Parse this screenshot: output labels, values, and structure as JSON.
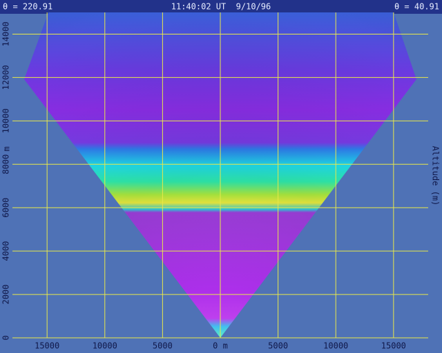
{
  "chart_data": {
    "type": "scan",
    "title_left": "θ = 220.91",
    "title": "11:40:02 UT  9/10/96",
    "title_right": "θ = 40.91",
    "ylabel": "m",
    "y2label": "Altitude (m)",
    "xlim": [
      -18000,
      18000
    ],
    "ylim": [
      0,
      15000
    ],
    "xticks": [
      {
        "value": -15000,
        "label": "15000"
      },
      {
        "value": -10000,
        "label": "10000"
      },
      {
        "value": -5000,
        "label": "5000"
      },
      {
        "value": 0,
        "label": "0 m"
      },
      {
        "value": 5000,
        "label": "5000"
      },
      {
        "value": 10000,
        "label": "10000"
      },
      {
        "value": 15000,
        "label": "15000"
      }
    ],
    "yticks": [
      0,
      2000,
      4000,
      6000,
      8000,
      10000,
      12000,
      14000
    ],
    "grid": true,
    "grid_color": "#e8e84a"
  }
}
